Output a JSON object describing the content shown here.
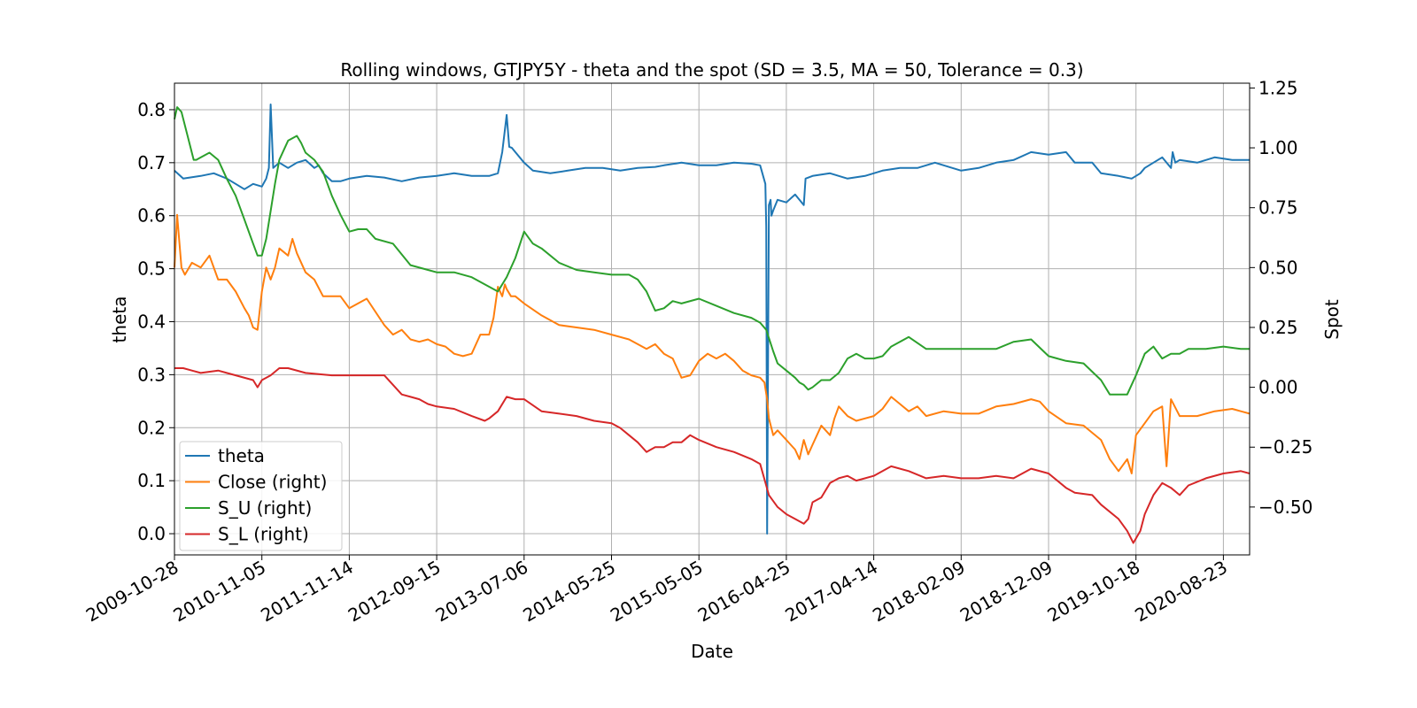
{
  "chart_data": {
    "type": "line",
    "title": "Rolling windows, GTJPY5Y - theta and the spot (SD = 3.5, MA = 50, Tolerance  = 0.3)",
    "xlabel": "Date",
    "ylabel_left": "theta",
    "ylabel_right": "Spot",
    "ylim_left": [
      -0.04,
      0.85
    ],
    "ylim_right": [
      -0.7,
      1.27
    ],
    "yticks_left": [
      "0.0",
      "0.1",
      "0.2",
      "0.3",
      "0.4",
      "0.5",
      "0.6",
      "0.7",
      "0.8"
    ],
    "yticks_right": [
      "−0.50",
      "−0.25",
      "0.00",
      "0.25",
      "0.50",
      "0.75",
      "1.00",
      "1.25"
    ],
    "x_categories": [
      "2009-10-28",
      "2010-11-05",
      "2011-11-14",
      "2012-09-15",
      "2013-07-06",
      "2014-05-25",
      "2015-05-05",
      "2016-04-25",
      "2017-04-14",
      "2018-02-09",
      "2018-12-09",
      "2019-10-18",
      "2020-08-23"
    ],
    "x_range": [
      0,
      12.3
    ],
    "grid": true,
    "legend": {
      "placement": "lower-left",
      "entries": [
        "theta",
        "Close (right)",
        "S_U (right)",
        "S_L (right)"
      ]
    },
    "series": [
      {
        "name": "theta",
        "axis": "left",
        "color": "#1f77b4",
        "x": [
          0,
          0.1,
          0.3,
          0.45,
          0.6,
          0.7,
          0.8,
          0.9,
          1.0,
          1.05,
          1.08,
          1.1,
          1.13,
          1.2,
          1.3,
          1.4,
          1.5,
          1.6,
          1.65,
          1.7,
          1.8,
          1.9,
          2.0,
          2.2,
          2.4,
          2.6,
          2.8,
          3.0,
          3.2,
          3.4,
          3.6,
          3.7,
          3.75,
          3.8,
          3.83,
          3.86,
          3.9,
          4.0,
          4.1,
          4.3,
          4.5,
          4.7,
          4.9,
          5.1,
          5.3,
          5.5,
          5.6,
          5.8,
          6.0,
          6.2,
          6.4,
          6.6,
          6.7,
          6.76,
          6.77,
          6.78,
          6.8,
          6.82,
          6.83,
          6.85,
          6.9,
          7.0,
          7.1,
          7.2,
          7.22,
          7.3,
          7.5,
          7.7,
          7.9,
          8.1,
          8.3,
          8.5,
          8.7,
          8.9,
          9.0,
          9.2,
          9.4,
          9.6,
          9.8,
          10.0,
          10.2,
          10.3,
          10.5,
          10.6,
          10.8,
          10.95,
          11.05,
          11.1,
          11.2,
          11.3,
          11.4,
          11.42,
          11.45,
          11.5,
          11.7,
          11.9,
          12.1,
          12.3
        ],
        "values": [
          0.685,
          0.67,
          0.675,
          0.68,
          0.67,
          0.66,
          0.65,
          0.66,
          0.655,
          0.67,
          0.69,
          0.81,
          0.69,
          0.7,
          0.69,
          0.7,
          0.705,
          0.69,
          0.695,
          0.68,
          0.665,
          0.665,
          0.67,
          0.675,
          0.672,
          0.665,
          0.672,
          0.675,
          0.68,
          0.675,
          0.675,
          0.68,
          0.72,
          0.79,
          0.73,
          0.728,
          0.72,
          0.7,
          0.685,
          0.68,
          0.685,
          0.69,
          0.69,
          0.685,
          0.69,
          0.692,
          0.695,
          0.7,
          0.695,
          0.695,
          0.7,
          0.698,
          0.695,
          0.66,
          0.58,
          0.0,
          0.62,
          0.63,
          0.6,
          0.61,
          0.63,
          0.625,
          0.64,
          0.62,
          0.67,
          0.675,
          0.68,
          0.67,
          0.675,
          0.685,
          0.69,
          0.69,
          0.7,
          0.69,
          0.685,
          0.69,
          0.7,
          0.705,
          0.72,
          0.715,
          0.72,
          0.7,
          0.7,
          0.68,
          0.675,
          0.67,
          0.68,
          0.69,
          0.7,
          0.71,
          0.69,
          0.72,
          0.7,
          0.705,
          0.7,
          0.71,
          0.705,
          0.705
        ]
      },
      {
        "name": "Close (right)",
        "axis": "right",
        "color": "#ff7f0e",
        "x": [
          0,
          0.03,
          0.08,
          0.12,
          0.2,
          0.3,
          0.4,
          0.5,
          0.6,
          0.7,
          0.8,
          0.85,
          0.9,
          0.95,
          1.0,
          1.05,
          1.1,
          1.15,
          1.2,
          1.3,
          1.35,
          1.4,
          1.5,
          1.6,
          1.7,
          1.8,
          1.9,
          2.0,
          2.2,
          2.4,
          2.5,
          2.6,
          2.7,
          2.8,
          2.9,
          3.0,
          3.1,
          3.2,
          3.3,
          3.4,
          3.5,
          3.6,
          3.65,
          3.7,
          3.75,
          3.78,
          3.8,
          3.85,
          3.9,
          4.0,
          4.2,
          4.4,
          4.6,
          4.8,
          5.0,
          5.2,
          5.4,
          5.5,
          5.6,
          5.7,
          5.8,
          5.9,
          6.0,
          6.1,
          6.2,
          6.3,
          6.4,
          6.5,
          6.6,
          6.7,
          6.75,
          6.78,
          6.8,
          6.85,
          6.9,
          7.0,
          7.1,
          7.15,
          7.2,
          7.25,
          7.3,
          7.4,
          7.5,
          7.55,
          7.6,
          7.7,
          7.8,
          7.9,
          8.0,
          8.1,
          8.2,
          8.3,
          8.4,
          8.5,
          8.6,
          8.8,
          9.0,
          9.2,
          9.4,
          9.6,
          9.8,
          9.9,
          10.0,
          10.2,
          10.4,
          10.5,
          10.6,
          10.7,
          10.8,
          10.9,
          10.95,
          11.0,
          11.1,
          11.2,
          11.3,
          11.35,
          11.4,
          11.5,
          11.7,
          11.9,
          12.1,
          12.2,
          12.3
        ],
        "values": [
          0.5,
          0.72,
          0.5,
          0.47,
          0.52,
          0.5,
          0.55,
          0.45,
          0.45,
          0.4,
          0.33,
          0.3,
          0.25,
          0.24,
          0.4,
          0.5,
          0.45,
          0.5,
          0.58,
          0.55,
          0.62,
          0.56,
          0.48,
          0.45,
          0.38,
          0.38,
          0.38,
          0.33,
          0.37,
          0.26,
          0.22,
          0.24,
          0.2,
          0.19,
          0.2,
          0.18,
          0.17,
          0.14,
          0.13,
          0.14,
          0.22,
          0.22,
          0.29,
          0.42,
          0.38,
          0.43,
          0.41,
          0.38,
          0.38,
          0.35,
          0.3,
          0.26,
          0.25,
          0.24,
          0.22,
          0.2,
          0.16,
          0.18,
          0.14,
          0.12,
          0.04,
          0.05,
          0.11,
          0.14,
          0.12,
          0.14,
          0.11,
          0.07,
          0.05,
          0.04,
          0.02,
          -0.05,
          -0.13,
          -0.2,
          -0.18,
          -0.22,
          -0.26,
          -0.3,
          -0.22,
          -0.28,
          -0.24,
          -0.16,
          -0.2,
          -0.13,
          -0.08,
          -0.12,
          -0.14,
          -0.13,
          -0.12,
          -0.09,
          -0.04,
          -0.07,
          -0.1,
          -0.08,
          -0.12,
          -0.1,
          -0.11,
          -0.11,
          -0.08,
          -0.07,
          -0.05,
          -0.06,
          -0.1,
          -0.15,
          -0.16,
          -0.19,
          -0.22,
          -0.3,
          -0.35,
          -0.3,
          -0.36,
          -0.2,
          -0.15,
          -0.1,
          -0.08,
          -0.33,
          -0.05,
          -0.12,
          -0.12,
          -0.1,
          -0.09,
          -0.1,
          -0.11
        ]
      },
      {
        "name": "S_U (right)",
        "axis": "right",
        "color": "#2ca02c",
        "x": [
          0,
          0.03,
          0.08,
          0.15,
          0.22,
          0.25,
          0.3,
          0.4,
          0.5,
          0.6,
          0.7,
          0.8,
          0.9,
          0.95,
          1.0,
          1.05,
          1.15,
          1.2,
          1.3,
          1.4,
          1.45,
          1.5,
          1.6,
          1.7,
          1.8,
          1.9,
          2.0,
          2.1,
          2.2,
          2.3,
          2.5,
          2.7,
          2.9,
          3.0,
          3.2,
          3.4,
          3.6,
          3.7,
          3.8,
          3.9,
          4.0,
          4.1,
          4.2,
          4.4,
          4.6,
          4.8,
          5.0,
          5.2,
          5.3,
          5.4,
          5.5,
          5.6,
          5.7,
          5.8,
          6.0,
          6.2,
          6.4,
          6.6,
          6.7,
          6.77,
          6.85,
          6.9,
          7.0,
          7.1,
          7.15,
          7.2,
          7.25,
          7.3,
          7.4,
          7.5,
          7.6,
          7.7,
          7.8,
          7.9,
          8.0,
          8.1,
          8.2,
          8.4,
          8.6,
          8.8,
          9.0,
          9.2,
          9.4,
          9.6,
          9.8,
          10.0,
          10.1,
          10.2,
          10.4,
          10.6,
          10.7,
          10.9,
          11.0,
          11.1,
          11.2,
          11.3,
          11.4,
          11.5,
          11.6,
          11.8,
          12.0,
          12.2,
          12.3
        ],
        "values": [
          1.12,
          1.17,
          1.15,
          1.05,
          0.95,
          0.95,
          0.96,
          0.98,
          0.95,
          0.87,
          0.8,
          0.7,
          0.6,
          0.55,
          0.55,
          0.62,
          0.85,
          0.95,
          1.03,
          1.05,
          1.02,
          0.98,
          0.95,
          0.9,
          0.8,
          0.72,
          0.65,
          0.66,
          0.66,
          0.62,
          0.6,
          0.51,
          0.49,
          0.48,
          0.48,
          0.46,
          0.42,
          0.4,
          0.46,
          0.54,
          0.65,
          0.6,
          0.58,
          0.52,
          0.49,
          0.48,
          0.47,
          0.47,
          0.45,
          0.4,
          0.32,
          0.33,
          0.36,
          0.35,
          0.37,
          0.34,
          0.31,
          0.29,
          0.27,
          0.24,
          0.15,
          0.1,
          0.07,
          0.04,
          0.02,
          0.01,
          -0.01,
          0.0,
          0.03,
          0.03,
          0.06,
          0.12,
          0.14,
          0.12,
          0.12,
          0.13,
          0.17,
          0.21,
          0.16,
          0.16,
          0.16,
          0.16,
          0.16,
          0.19,
          0.2,
          0.13,
          0.12,
          0.11,
          0.1,
          0.03,
          -0.03,
          -0.03,
          0.05,
          0.14,
          0.17,
          0.12,
          0.14,
          0.14,
          0.16,
          0.16,
          0.17,
          0.16,
          0.16
        ]
      },
      {
        "name": "S_L (right)",
        "axis": "right",
        "color": "#d62728",
        "x": [
          0,
          0.1,
          0.2,
          0.3,
          0.5,
          0.7,
          0.9,
          0.95,
          1.0,
          1.1,
          1.2,
          1.3,
          1.5,
          1.8,
          2.0,
          2.2,
          2.4,
          2.6,
          2.7,
          2.8,
          2.9,
          3.0,
          3.2,
          3.4,
          3.55,
          3.6,
          3.7,
          3.8,
          3.9,
          4.0,
          4.2,
          4.4,
          4.6,
          4.8,
          5.0,
          5.1,
          5.2,
          5.3,
          5.4,
          5.5,
          5.6,
          5.7,
          5.8,
          5.9,
          6.0,
          6.2,
          6.4,
          6.6,
          6.7,
          6.8,
          6.9,
          7.0,
          7.1,
          7.2,
          7.25,
          7.3,
          7.4,
          7.5,
          7.6,
          7.7,
          7.8,
          8.0,
          8.2,
          8.4,
          8.6,
          8.8,
          9.0,
          9.2,
          9.4,
          9.6,
          9.8,
          10.0,
          10.2,
          10.3,
          10.5,
          10.6,
          10.8,
          10.9,
          10.97,
          11.05,
          11.1,
          11.2,
          11.3,
          11.4,
          11.5,
          11.6,
          11.8,
          12.0,
          12.2,
          12.3
        ],
        "values": [
          0.08,
          0.08,
          0.07,
          0.06,
          0.07,
          0.05,
          0.03,
          0.0,
          0.03,
          0.05,
          0.08,
          0.08,
          0.06,
          0.05,
          0.05,
          0.05,
          0.05,
          -0.03,
          -0.04,
          -0.05,
          -0.07,
          -0.08,
          -0.09,
          -0.12,
          -0.14,
          -0.13,
          -0.1,
          -0.04,
          -0.05,
          -0.05,
          -0.1,
          -0.11,
          -0.12,
          -0.14,
          -0.15,
          -0.17,
          -0.2,
          -0.23,
          -0.27,
          -0.25,
          -0.25,
          -0.23,
          -0.23,
          -0.2,
          -0.22,
          -0.25,
          -0.27,
          -0.3,
          -0.32,
          -0.45,
          -0.5,
          -0.53,
          -0.55,
          -0.57,
          -0.55,
          -0.48,
          -0.46,
          -0.4,
          -0.38,
          -0.37,
          -0.39,
          -0.37,
          -0.33,
          -0.35,
          -0.38,
          -0.37,
          -0.38,
          -0.38,
          -0.37,
          -0.38,
          -0.34,
          -0.36,
          -0.42,
          -0.44,
          -0.45,
          -0.49,
          -0.55,
          -0.6,
          -0.65,
          -0.6,
          -0.53,
          -0.45,
          -0.4,
          -0.42,
          -0.45,
          -0.41,
          -0.38,
          -0.36,
          -0.35,
          -0.36
        ]
      }
    ]
  }
}
